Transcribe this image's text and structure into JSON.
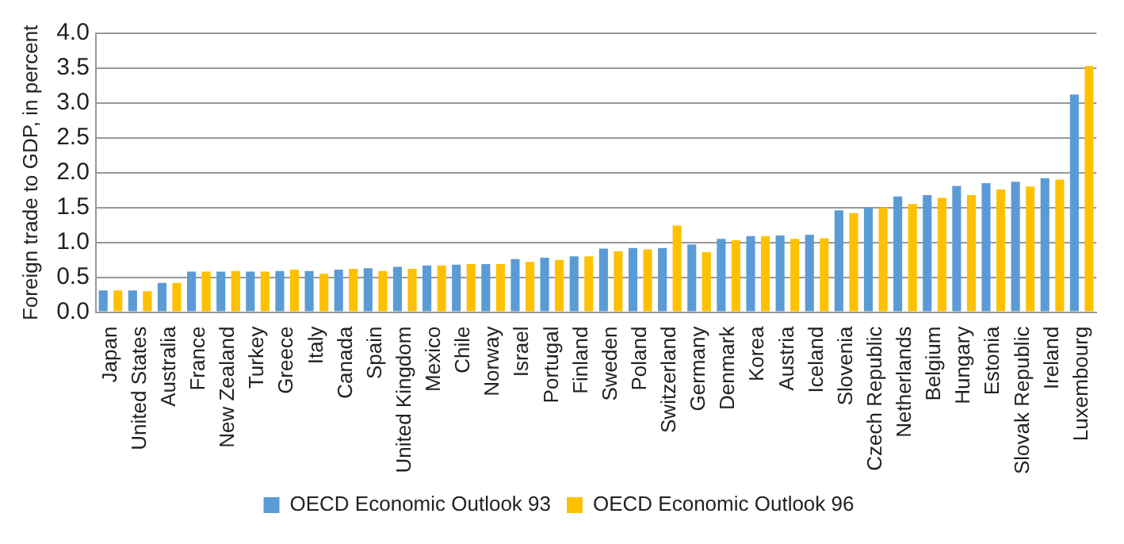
{
  "chart_data": {
    "type": "bar",
    "ylabel": "Foreign trade to GDP, in percent",
    "categories": [
      "Japan",
      "United States",
      "Australia",
      "France",
      "New Zealand",
      "Turkey",
      "Greece",
      "Italy",
      "Canada",
      "Spain",
      "United Kingdom",
      "Mexico",
      "Chile",
      "Norway",
      "Israel",
      "Portugal",
      "Finland",
      "Sweden",
      "Poland",
      "Switzerland",
      "Germany",
      "Denmark",
      "Korea",
      "Austria",
      "Iceland",
      "Slovenia",
      "Czech Republic",
      "Netherlands",
      "Belgium",
      "Hungary",
      "Estonia",
      "Slovak Republic",
      "Ireland",
      "Luxembourg"
    ],
    "series": [
      {
        "name": "OECD Economic Outlook 93",
        "color": "#5b9bd5",
        "values": [
          0.31,
          0.31,
          0.42,
          0.58,
          0.58,
          0.58,
          0.59,
          0.59,
          0.61,
          0.63,
          0.65,
          0.67,
          0.68,
          0.69,
          0.76,
          0.78,
          0.8,
          0.91,
          0.92,
          0.92,
          0.97,
          1.05,
          1.09,
          1.1,
          1.11,
          1.46,
          1.5,
          1.66,
          1.68,
          1.81,
          1.85,
          1.87,
          1.92,
          3.12
        ]
      },
      {
        "name": "OECD Economic Outlook 96",
        "color": "#ffc000",
        "values": [
          0.31,
          0.3,
          0.42,
          0.58,
          0.59,
          0.58,
          0.61,
          0.55,
          0.62,
          0.59,
          0.62,
          0.67,
          0.69,
          0.69,
          0.72,
          0.75,
          0.8,
          0.87,
          0.9,
          1.24,
          0.86,
          1.03,
          1.09,
          1.05,
          1.06,
          1.42,
          1.5,
          1.55,
          1.64,
          1.68,
          1.76,
          1.8,
          1.9,
          3.53
        ]
      }
    ],
    "ylim": [
      0,
      4
    ],
    "yticks": [
      {
        "value": 0,
        "label": "0.0"
      },
      {
        "value": 0.5,
        "label": "0.5"
      },
      {
        "value": 1,
        "label": "1.0"
      },
      {
        "value": 1.5,
        "label": "1.5"
      },
      {
        "value": 2,
        "label": "2.0"
      },
      {
        "value": 2.5,
        "label": "2.5"
      },
      {
        "value": 3,
        "label": "3.0"
      },
      {
        "value": 3.5,
        "label": "3.5"
      },
      {
        "value": 4,
        "label": "4.0"
      }
    ],
    "grid": "y",
    "legend": "bottom"
  }
}
